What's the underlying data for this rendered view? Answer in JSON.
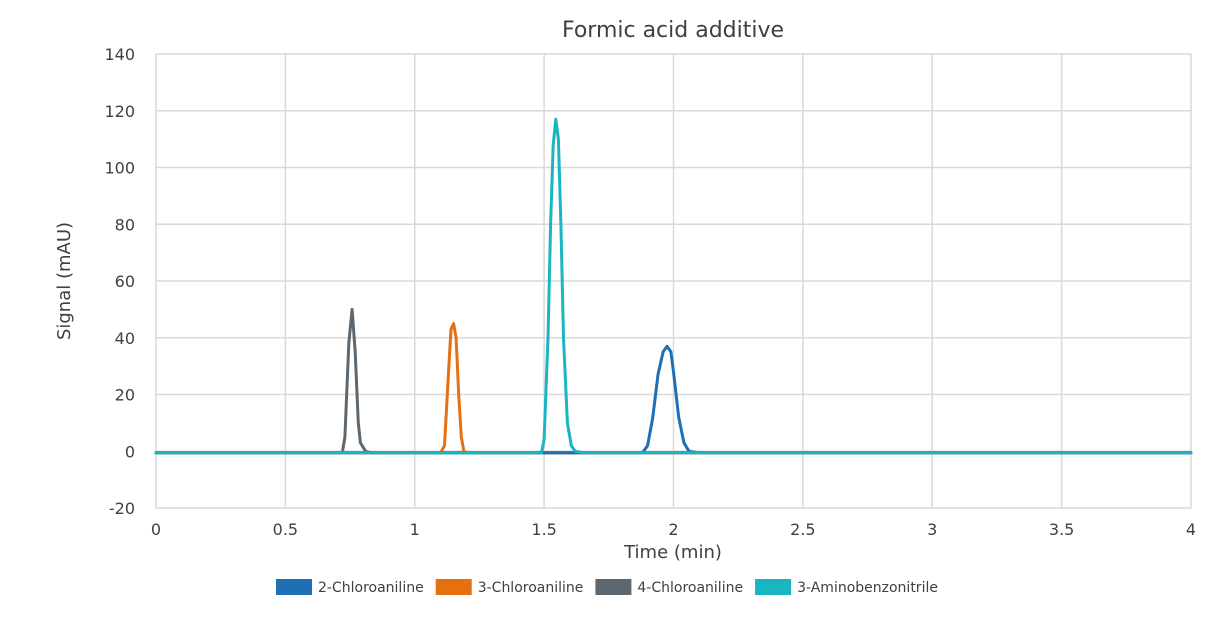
{
  "chart_data": {
    "type": "line",
    "title": "Formic acid additive",
    "xlabel": "Time (min)",
    "ylabel": "Signal (mAU)",
    "xlim": [
      0,
      4
    ],
    "ylim": [
      -20,
      140
    ],
    "x_ticks": [
      "0",
      "0.5",
      "1",
      "1.5",
      "2",
      "2.5",
      "3",
      "3.5",
      "4"
    ],
    "y_ticks": [
      "-20",
      "0",
      "20",
      "40",
      "60",
      "80",
      "100",
      "120",
      "140"
    ],
    "grid": true,
    "legend_position": "bottom",
    "series": [
      {
        "name": "2-Chloroaniline",
        "color": "#1F6FB5",
        "points": [
          [
            0,
            -0.5
          ],
          [
            1.88,
            -0.5
          ],
          [
            1.9,
            2
          ],
          [
            1.92,
            12
          ],
          [
            1.94,
            27
          ],
          [
            1.96,
            35
          ],
          [
            1.975,
            37
          ],
          [
            1.99,
            35
          ],
          [
            2.0,
            28
          ],
          [
            2.02,
            12
          ],
          [
            2.04,
            3
          ],
          [
            2.06,
            0
          ],
          [
            2.1,
            -0.5
          ],
          [
            4.0,
            -0.5
          ]
        ]
      },
      {
        "name": "3-Chloroaniline",
        "color": "#E66F10",
        "points": [
          [
            0,
            -0.5
          ],
          [
            1.1,
            -0.5
          ],
          [
            1.115,
            2
          ],
          [
            1.13,
            27
          ],
          [
            1.14,
            43
          ],
          [
            1.15,
            45
          ],
          [
            1.16,
            40
          ],
          [
            1.17,
            20
          ],
          [
            1.18,
            5
          ],
          [
            1.19,
            0
          ],
          [
            1.2,
            -0.5
          ],
          [
            4.0,
            -0.5
          ]
        ]
      },
      {
        "name": "4-Chloroaniline",
        "color": "#5C6770",
        "points": [
          [
            0,
            -0.5
          ],
          [
            0.72,
            -0.5
          ],
          [
            0.73,
            5
          ],
          [
            0.745,
            38
          ],
          [
            0.758,
            50
          ],
          [
            0.77,
            35
          ],
          [
            0.782,
            10
          ],
          [
            0.79,
            3
          ],
          [
            0.81,
            0
          ],
          [
            0.83,
            -0.5
          ],
          [
            4.0,
            -0.5
          ]
        ]
      },
      {
        "name": "3-Aminobenzonitrile",
        "color": "#1AB5C1",
        "points": [
          [
            0,
            -0.5
          ],
          [
            1.49,
            -0.5
          ],
          [
            1.5,
            4
          ],
          [
            1.515,
            40
          ],
          [
            1.525,
            80
          ],
          [
            1.535,
            108
          ],
          [
            1.545,
            117
          ],
          [
            1.555,
            110
          ],
          [
            1.565,
            80
          ],
          [
            1.575,
            40
          ],
          [
            1.59,
            10
          ],
          [
            1.605,
            2
          ],
          [
            1.62,
            0
          ],
          [
            1.65,
            -0.5
          ],
          [
            4.0,
            -0.5
          ]
        ]
      }
    ]
  }
}
